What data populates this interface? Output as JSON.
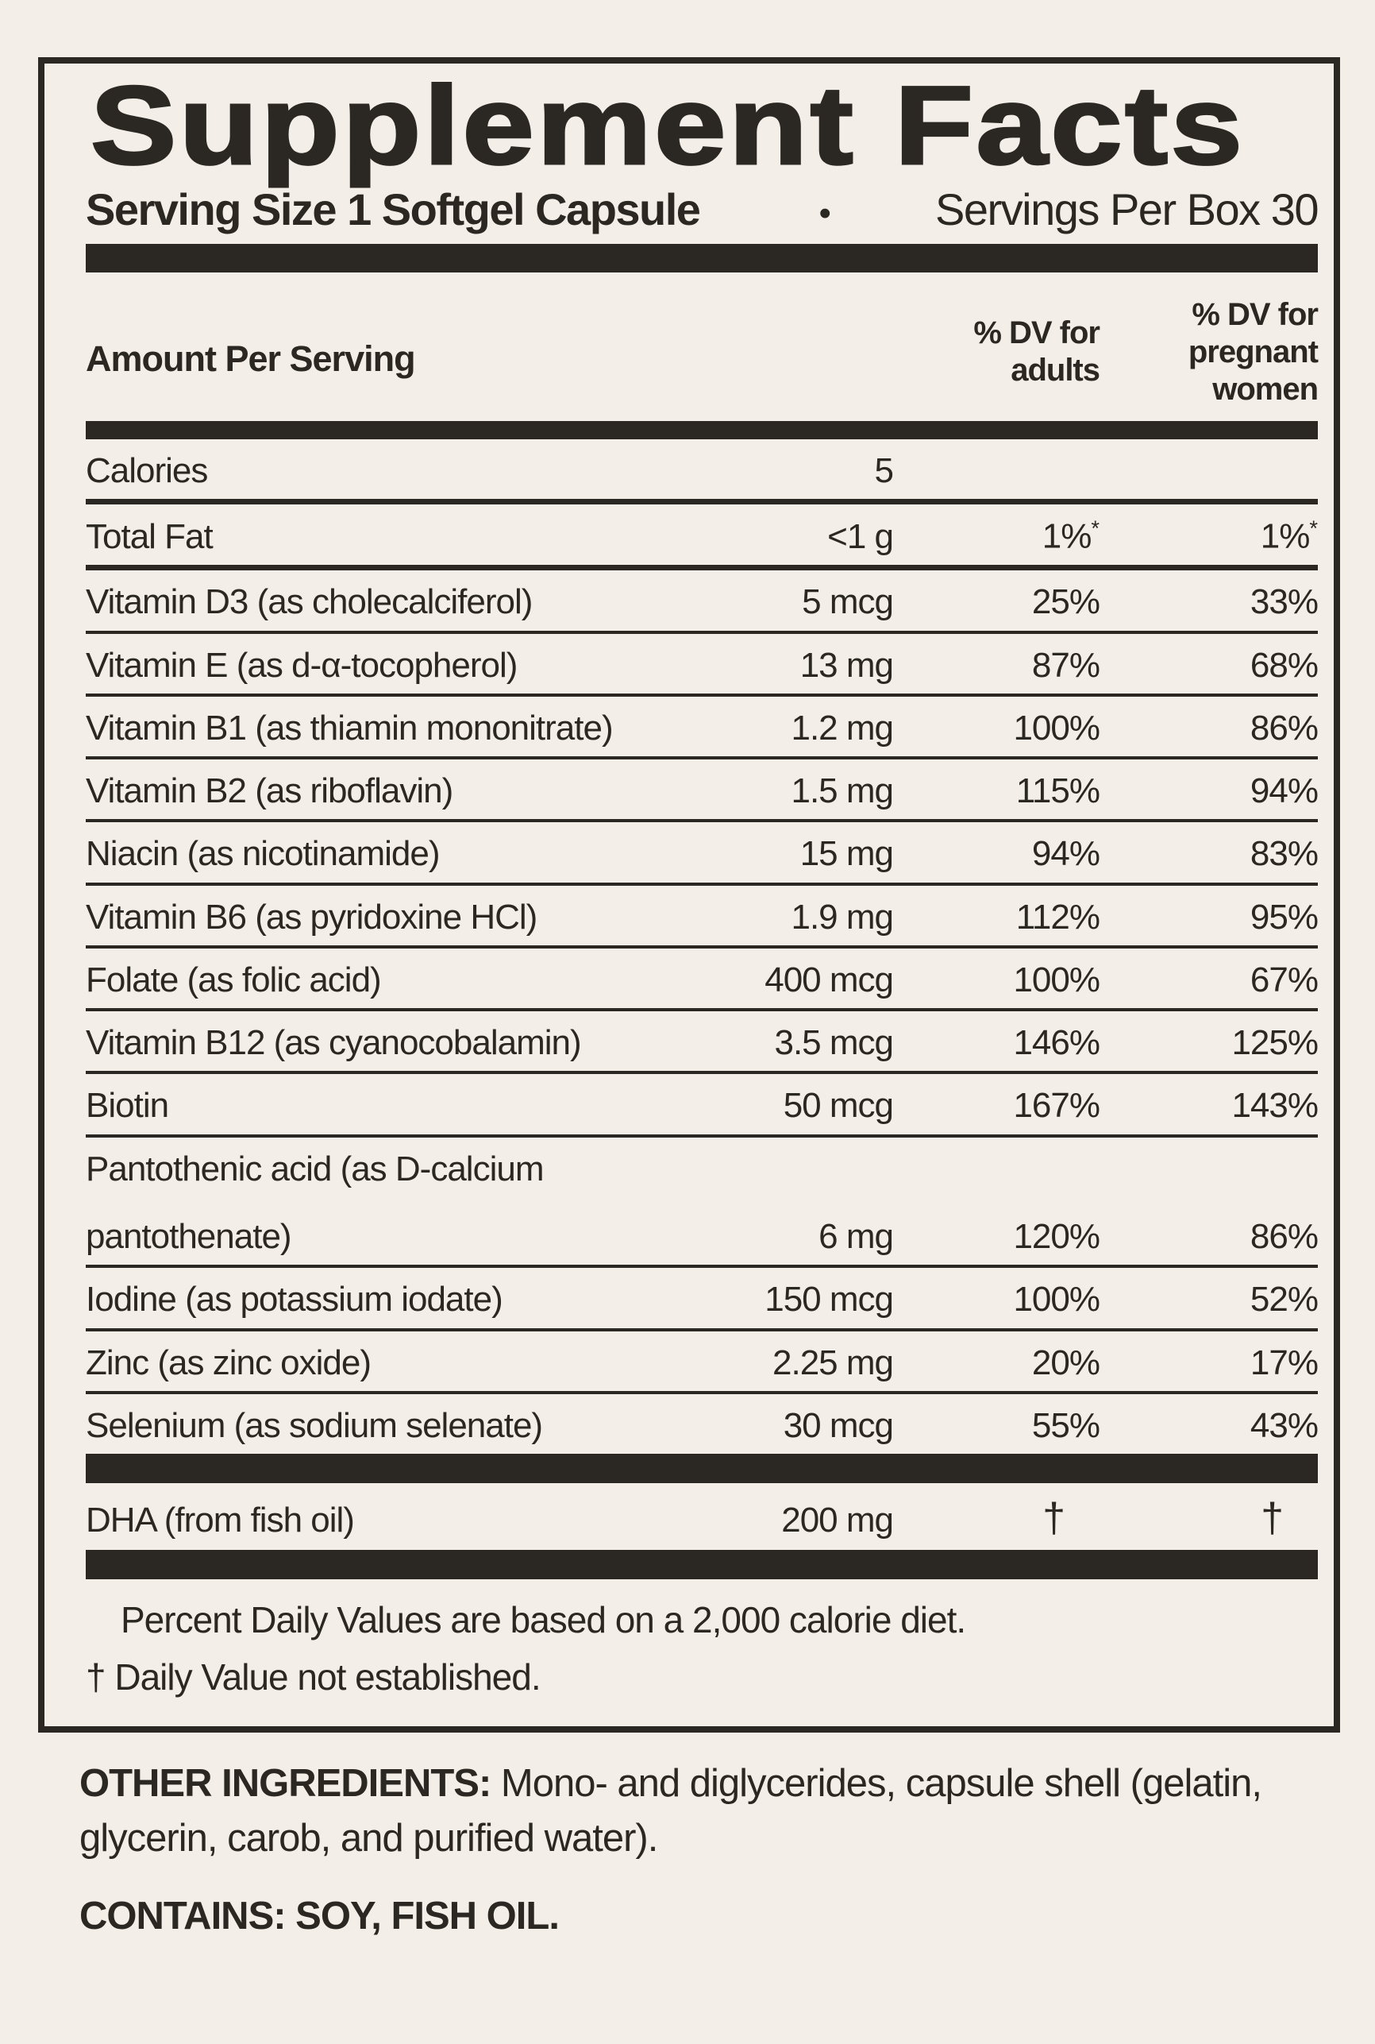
{
  "colors": {
    "background": "#f3efe8",
    "ink": "#2b2823"
  },
  "panel": {
    "title": "Supplement Facts",
    "serving_size": "Serving Size 1 Softgel Capsule",
    "bullet": "•",
    "servings_per_box": "Servings Per Box 30",
    "header": {
      "amount": "Amount Per Serving",
      "adults": "% DV for\nadults",
      "pregnant": "% DV for\npregnant\nwomen"
    },
    "rows": [
      {
        "name": "Calories",
        "amount": "5",
        "adults": "",
        "pregnant": ""
      },
      {
        "name": "Total Fat",
        "amount": "<1 g",
        "adults": "1%",
        "adults_note": "*",
        "pregnant": "1%",
        "pregnant_note": "*"
      },
      {
        "name": "Vitamin D3 (as cholecalciferol)",
        "amount": "5 mcg",
        "adults": "25%",
        "pregnant": "33%"
      },
      {
        "name": "Vitamin E (as d-α-tocopherol)",
        "amount": "13 mg",
        "adults": "87%",
        "pregnant": "68%"
      },
      {
        "name": "Vitamin B1 (as thiamin mononitrate)",
        "amount": "1.2 mg",
        "adults": "100%",
        "pregnant": "86%"
      },
      {
        "name": "Vitamin B2 (as riboflavin)",
        "amount": "1.5 mg",
        "adults": "115%",
        "pregnant": "94%"
      },
      {
        "name": "Niacin (as nicotinamide)",
        "amount": "15 mg",
        "adults": "94%",
        "pregnant": "83%"
      },
      {
        "name": "Vitamin B6 (as pyridoxine HCl)",
        "amount": "1.9 mg",
        "adults": "112%",
        "pregnant": "95%"
      },
      {
        "name": "Folate (as folic acid)",
        "amount": "400 mcg",
        "adults": "100%",
        "pregnant": "67%"
      },
      {
        "name": "Vitamin B12 (as cyanocobalamin)",
        "amount": "3.5 mcg",
        "adults": "146%",
        "pregnant": "125%"
      },
      {
        "name": "Biotin",
        "amount": "50 mcg",
        "adults": "167%",
        "pregnant": "143%"
      },
      {
        "name": "Pantothenic acid (as D-calcium",
        "name2": "pantothenate)",
        "amount": "6 mg",
        "adults": "120%",
        "pregnant": "86%"
      },
      {
        "name": "Iodine (as potassium iodate)",
        "amount": "150 mcg",
        "adults": "100%",
        "pregnant": "52%"
      },
      {
        "name": "Zinc (as zinc oxide)",
        "amount": "2.25 mg",
        "adults": "20%",
        "pregnant": "17%"
      },
      {
        "name": "Selenium (as sodium selenate)",
        "amount": "30 mcg",
        "adults": "55%",
        "pregnant": "43%"
      },
      {
        "name": "DHA (from fish oil)",
        "amount": "200 mg",
        "adults": "†",
        "pregnant": "†"
      }
    ],
    "footnotes": {
      "line1": "Percent Daily Values are based on a 2,000 calorie diet.",
      "line2": "† Daily Value not established."
    }
  },
  "bottom": {
    "other_label": "OTHER INGREDIENTS:",
    "other_text": " Mono- and diglycerides, capsule shell (gelatin, glycerin, carob, and purified water).",
    "contains": "CONTAINS: SOY, FISH OIL."
  }
}
